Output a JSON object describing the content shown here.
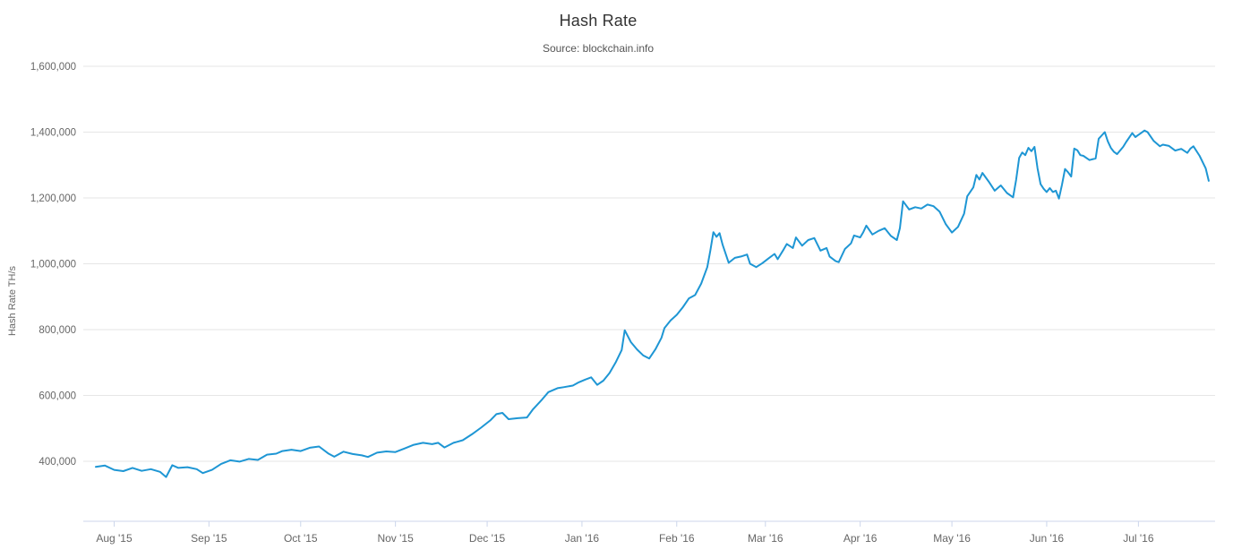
{
  "header": {
    "title": "Hash Rate",
    "subtitle": "Source: blockchain.info"
  },
  "colors": {
    "line": "#1e96d4",
    "grid": "#e6e6e6",
    "axis_line": "#ccd6eb",
    "tick": "#ccd6eb",
    "axis_label": "#666666",
    "title": "#333333",
    "subtitle": "#555555",
    "background": "#ffffff"
  },
  "chart_data": {
    "type": "line",
    "title": "Hash Rate",
    "subtitle": "Source: blockchain.info",
    "xlabel": "",
    "ylabel": "Hash Rate TH/s",
    "legend": false,
    "grid": "horizontal",
    "ylim": [
      218000,
      1600000
    ],
    "y_ticks": [
      {
        "label": "400,000",
        "value": 400000
      },
      {
        "label": "600,000",
        "value": 600000
      },
      {
        "label": "800,000",
        "value": 800000
      },
      {
        "label": "1,000,000",
        "value": 1000000
      },
      {
        "label": "1,200,000",
        "value": 1200000
      },
      {
        "label": "1,400,000",
        "value": 1400000
      },
      {
        "label": "1,600,000",
        "value": 1600000
      }
    ],
    "x_unit": "day offset across the plotted year (0 = first point, late Jul 2015)",
    "x_ticks": [
      {
        "label": "Aug '15",
        "day": 6
      },
      {
        "label": "Sep '15",
        "day": 37
      },
      {
        "label": "Oct '15",
        "day": 67
      },
      {
        "label": "Nov '15",
        "day": 98
      },
      {
        "label": "Dec '15",
        "day": 128
      },
      {
        "label": "Jan '16",
        "day": 159
      },
      {
        "label": "Feb '16",
        "day": 190
      },
      {
        "label": "Mar '16",
        "day": 219
      },
      {
        "label": "Apr '16",
        "day": 250
      },
      {
        "label": "May '16",
        "day": 280
      },
      {
        "label": "Jun '16",
        "day": 311
      },
      {
        "label": "Jul '16",
        "day": 341
      }
    ],
    "series": [
      {
        "name": "Hash Rate",
        "unit": "TH/s",
        "points": [
          [
            0,
            383000
          ],
          [
            3,
            387000
          ],
          [
            6,
            374000
          ],
          [
            9,
            370000
          ],
          [
            12,
            380000
          ],
          [
            15,
            371000
          ],
          [
            18,
            376000
          ],
          [
            21,
            368000
          ],
          [
            23,
            352000
          ],
          [
            25,
            388000
          ],
          [
            27,
            380000
          ],
          [
            30,
            382000
          ],
          [
            33,
            376000
          ],
          [
            35,
            364000
          ],
          [
            38,
            374000
          ],
          [
            41,
            392000
          ],
          [
            44,
            403000
          ],
          [
            47,
            399000
          ],
          [
            50,
            407000
          ],
          [
            53,
            404000
          ],
          [
            56,
            420000
          ],
          [
            59,
            423000
          ],
          [
            61,
            431000
          ],
          [
            64,
            435000
          ],
          [
            67,
            431000
          ],
          [
            70,
            441000
          ],
          [
            73,
            445000
          ],
          [
            76,
            424000
          ],
          [
            78,
            414000
          ],
          [
            81,
            429000
          ],
          [
            84,
            422000
          ],
          [
            87,
            418000
          ],
          [
            89,
            413000
          ],
          [
            92,
            426000
          ],
          [
            95,
            430000
          ],
          [
            98,
            428000
          ],
          [
            101,
            439000
          ],
          [
            104,
            450000
          ],
          [
            107,
            456000
          ],
          [
            110,
            452000
          ],
          [
            112,
            456000
          ],
          [
            114,
            442000
          ],
          [
            117,
            456000
          ],
          [
            120,
            464000
          ],
          [
            123,
            482000
          ],
          [
            126,
            502000
          ],
          [
            129,
            524000
          ],
          [
            131,
            543000
          ],
          [
            133,
            547000
          ],
          [
            135,
            528000
          ],
          [
            138,
            531000
          ],
          [
            141,
            533000
          ],
          [
            143,
            558000
          ],
          [
            146,
            588000
          ],
          [
            148,
            610000
          ],
          [
            151,
            622000
          ],
          [
            153,
            625000
          ],
          [
            156,
            630000
          ],
          [
            158,
            640000
          ],
          [
            160,
            648000
          ],
          [
            162,
            655000
          ],
          [
            164,
            632000
          ],
          [
            166,
            645000
          ],
          [
            168,
            668000
          ],
          [
            170,
            700000
          ],
          [
            172,
            738000
          ],
          [
            173,
            798000
          ],
          [
            175,
            762000
          ],
          [
            177,
            740000
          ],
          [
            179,
            722000
          ],
          [
            181,
            712000
          ],
          [
            183,
            740000
          ],
          [
            185,
            775000
          ],
          [
            186,
            805000
          ],
          [
            188,
            828000
          ],
          [
            190,
            845000
          ],
          [
            192,
            868000
          ],
          [
            194,
            895000
          ],
          [
            196,
            905000
          ],
          [
            198,
            940000
          ],
          [
            200,
            990000
          ],
          [
            201,
            1040000
          ],
          [
            202,
            1096000
          ],
          [
            203,
            1082000
          ],
          [
            204,
            1093000
          ],
          [
            205,
            1058000
          ],
          [
            207,
            1003000
          ],
          [
            209,
            1018000
          ],
          [
            211,
            1022000
          ],
          [
            213,
            1028000
          ],
          [
            214,
            1000000
          ],
          [
            216,
            990000
          ],
          [
            218,
            1002000
          ],
          [
            220,
            1016000
          ],
          [
            222,
            1030000
          ],
          [
            223,
            1014000
          ],
          [
            225,
            1044000
          ],
          [
            226,
            1060000
          ],
          [
            228,
            1048000
          ],
          [
            229,
            1080000
          ],
          [
            231,
            1055000
          ],
          [
            233,
            1072000
          ],
          [
            235,
            1078000
          ],
          [
            237,
            1040000
          ],
          [
            239,
            1048000
          ],
          [
            240,
            1022000
          ],
          [
            242,
            1008000
          ],
          [
            243,
            1005000
          ],
          [
            245,
            1045000
          ],
          [
            247,
            1062000
          ],
          [
            248,
            1086000
          ],
          [
            250,
            1080000
          ],
          [
            251,
            1096000
          ],
          [
            252,
            1116000
          ],
          [
            254,
            1089000
          ],
          [
            256,
            1100000
          ],
          [
            258,
            1108000
          ],
          [
            260,
            1085000
          ],
          [
            262,
            1072000
          ],
          [
            263,
            1108000
          ],
          [
            264,
            1190000
          ],
          [
            266,
            1165000
          ],
          [
            268,
            1172000
          ],
          [
            270,
            1168000
          ],
          [
            272,
            1180000
          ],
          [
            274,
            1175000
          ],
          [
            276,
            1158000
          ],
          [
            278,
            1120000
          ],
          [
            280,
            1095000
          ],
          [
            282,
            1112000
          ],
          [
            284,
            1152000
          ],
          [
            285,
            1205000
          ],
          [
            287,
            1232000
          ],
          [
            288,
            1270000
          ],
          [
            289,
            1256000
          ],
          [
            290,
            1276000
          ],
          [
            292,
            1250000
          ],
          [
            294,
            1222000
          ],
          [
            296,
            1238000
          ],
          [
            298,
            1215000
          ],
          [
            300,
            1202000
          ],
          [
            301,
            1255000
          ],
          [
            302,
            1322000
          ],
          [
            303,
            1338000
          ],
          [
            304,
            1330000
          ],
          [
            305,
            1352000
          ],
          [
            306,
            1342000
          ],
          [
            307,
            1355000
          ],
          [
            308,
            1290000
          ],
          [
            309,
            1242000
          ],
          [
            310,
            1228000
          ],
          [
            311,
            1218000
          ],
          [
            312,
            1230000
          ],
          [
            313,
            1218000
          ],
          [
            314,
            1222000
          ],
          [
            315,
            1198000
          ],
          [
            316,
            1240000
          ],
          [
            317,
            1288000
          ],
          [
            318,
            1278000
          ],
          [
            319,
            1265000
          ],
          [
            320,
            1350000
          ],
          [
            321,
            1345000
          ],
          [
            322,
            1330000
          ],
          [
            323,
            1328000
          ],
          [
            325,
            1315000
          ],
          [
            327,
            1320000
          ],
          [
            328,
            1380000
          ],
          [
            330,
            1400000
          ],
          [
            331,
            1372000
          ],
          [
            332,
            1352000
          ],
          [
            333,
            1340000
          ],
          [
            334,
            1333000
          ],
          [
            336,
            1355000
          ],
          [
            337,
            1370000
          ],
          [
            339,
            1397000
          ],
          [
            340,
            1385000
          ],
          [
            342,
            1398000
          ],
          [
            343,
            1405000
          ],
          [
            344,
            1400000
          ],
          [
            346,
            1373000
          ],
          [
            348,
            1357000
          ],
          [
            349,
            1362000
          ],
          [
            351,
            1358000
          ],
          [
            353,
            1344000
          ],
          [
            355,
            1349000
          ],
          [
            357,
            1337000
          ],
          [
            358,
            1350000
          ],
          [
            359,
            1357000
          ],
          [
            361,
            1328000
          ],
          [
            363,
            1290000
          ],
          [
            364,
            1252000
          ]
        ]
      }
    ]
  }
}
